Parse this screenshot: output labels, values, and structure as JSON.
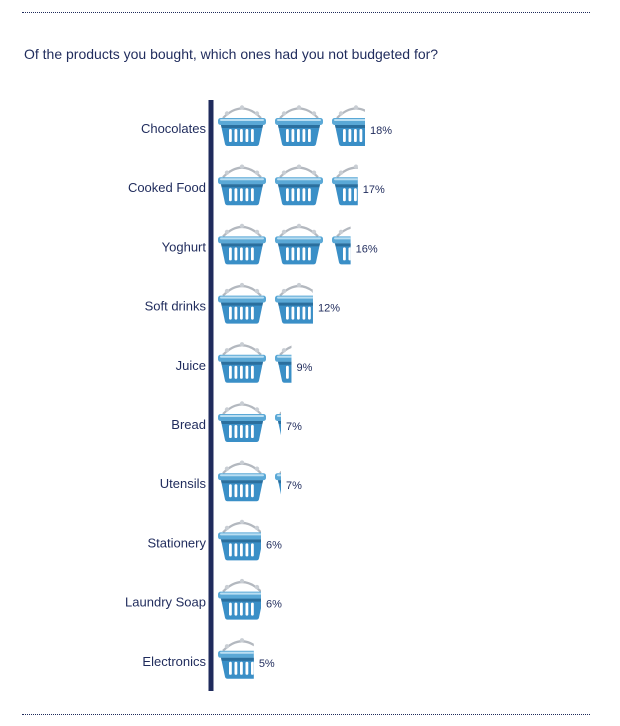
{
  "question": "Of the products you bought, which ones had you not budgeted for?",
  "colors": {
    "text": "#1f2b5c",
    "axis": "#1f2b5c",
    "basket_top": "#5aa8d6",
    "basket_body": "#3a8fc7",
    "basket_dark": "#2a6f9e",
    "basket_highlight": "#b9def2",
    "handle": "#b3b8bf"
  },
  "chart_data": {
    "type": "bar",
    "style": "pictograph (basket icons)",
    "categories": [
      "Chocolates",
      "Cooked Food",
      "Yoghurt",
      "Soft drinks",
      "Juice",
      "Bread",
      "Utensils",
      "Stationery",
      "Laundry Soap",
      "Electronics"
    ],
    "values": [
      18,
      17,
      16,
      12,
      9,
      7,
      7,
      6,
      6,
      5
    ],
    "value_labels": [
      "18%",
      "17%",
      "16%",
      "12%",
      "9%",
      "7%",
      "7%",
      "6%",
      "6%",
      "5%"
    ],
    "unit": "%",
    "orientation": "horizontal"
  }
}
